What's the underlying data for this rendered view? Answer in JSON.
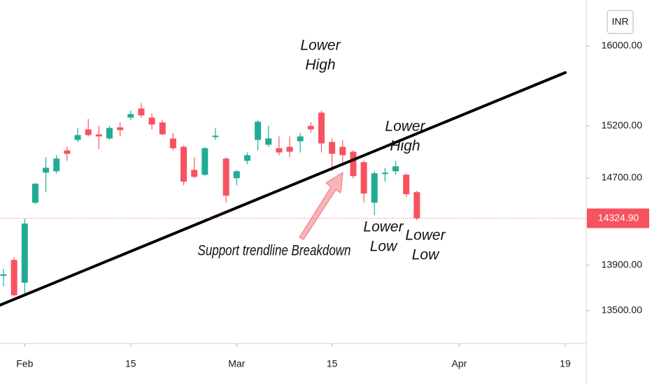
{
  "chart_data": {
    "type": "candlestick",
    "currency": "INR",
    "categories": [
      null,
      null,
      "Feb",
      null,
      null,
      null,
      null,
      null,
      null,
      null,
      null,
      null,
      "15",
      null,
      null,
      null,
      null,
      null,
      null,
      null,
      null,
      null,
      "Mar",
      null,
      null,
      null,
      null,
      null,
      null,
      null,
      null,
      "15",
      null,
      null,
      null,
      null,
      null,
      null,
      null,
      null,
      null,
      null,
      null,
      "Apr",
      null,
      null,
      null,
      null,
      null,
      null,
      null,
      null,
      null,
      "19"
    ],
    "open": [
      13805,
      13947,
      13744,
      14469,
      14751,
      14764,
      14963,
      15064,
      15166,
      15118,
      15078,
      15186,
      15282,
      15371,
      15282,
      15234,
      15078,
      14997,
      14777,
      14731,
      15091,
      14884,
      14698,
      14863,
      15064,
      15017,
      14984,
      14997,
      15051,
      15200,
      15330,
      15044,
      14997,
      14950,
      14850,
      14469,
      14738,
      14764,
      14731,
      14567,
      null,
      null,
      null,
      null,
      null,
      null,
      null,
      null,
      null,
      null,
      null,
      null,
      null,
      null
    ],
    "high": [
      13866,
      13972,
      14321,
      14652,
      14897,
      14917,
      14997,
      15180,
      15268,
      15200,
      15200,
      15234,
      15351,
      15426,
      15323,
      15255,
      15132,
      15010,
      14897,
      14997,
      15180,
      14897,
      14777,
      14943,
      15255,
      15200,
      15098,
      15098,
      15132,
      15234,
      15351,
      15078,
      15064,
      14963,
      14863,
      14764,
      14797,
      14863,
      14744,
      14580,
      null,
      null,
      null,
      null,
      null,
      null,
      null,
      null,
      null,
      null,
      null,
      null,
      null,
      null
    ],
    "low": [
      13713,
      13622,
      13652,
      14456,
      14567,
      14744,
      14863,
      15044,
      15098,
      14977,
      15064,
      15098,
      15255,
      15282,
      15166,
      15111,
      14963,
      14632,
      14698,
      14718,
      15064,
      14469,
      14632,
      14830,
      14963,
      14997,
      14917,
      14897,
      14943,
      15132,
      14943,
      14764,
      14830,
      14698,
      14469,
      14353,
      14665,
      14731,
      14521,
      14308,
      null,
      null,
      null,
      null,
      null,
      null,
      null,
      null,
      null,
      null,
      null,
      null,
      null,
      null
    ],
    "close": [
      13818,
      13634,
      14276,
      14646,
      14797,
      14884,
      14930,
      15111,
      15111,
      15098,
      15180,
      15159,
      15316,
      15303,
      15214,
      15118,
      14984,
      14665,
      14711,
      14984,
      15105,
      14534,
      14764,
      14917,
      15241,
      15078,
      14943,
      14950,
      15098,
      15166,
      15030,
      14930,
      14917,
      14718,
      14554,
      14744,
      14751,
      14811,
      14548,
      14324.9,
      null,
      null,
      null,
      null,
      null,
      null,
      null,
      null,
      null,
      null,
      null,
      null,
      null,
      null
    ],
    "up_color": "#22ab94",
    "down_color": "#f7525f",
    "last_price_label": "14324.90",
    "log_scale": true,
    "ylim": [
      13230,
      16480
    ],
    "yticks": [
      {
        "value": 13500,
        "label": "13500.00"
      },
      {
        "value": 13900,
        "label": "13900.00"
      },
      {
        "value": 14700,
        "label": "14700.00"
      },
      {
        "value": 15200,
        "label": "15200.00"
      },
      {
        "value": 16000,
        "label": "16000.00"
      }
    ],
    "annotations": [
      {
        "lines": [
          "Lower",
          "High"
        ]
      },
      {
        "lines": [
          "Lower",
          "High"
        ]
      },
      {
        "lines": [
          "Lower",
          "Low"
        ]
      },
      {
        "lines": [
          "Lower",
          "Low"
        ]
      },
      {
        "lines": [
          "Support trendline Breakdown"
        ]
      }
    ]
  }
}
